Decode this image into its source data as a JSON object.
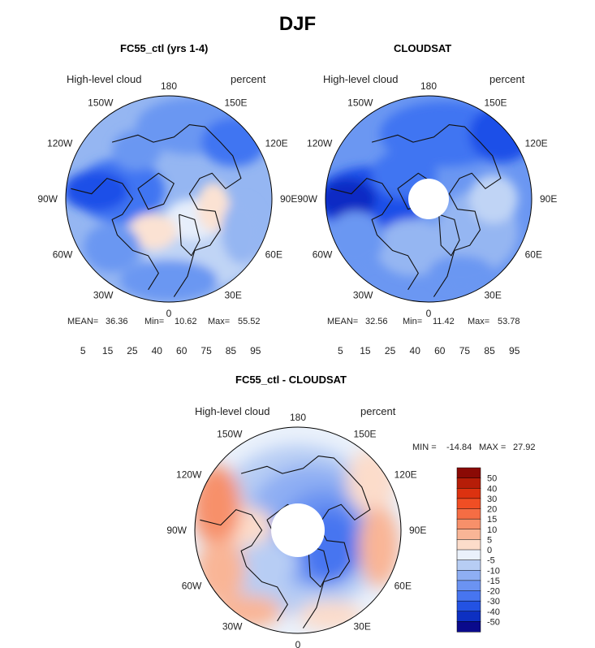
{
  "figure": {
    "title": "DJF"
  },
  "chart_data": [
    {
      "type": "heatmap",
      "projection": "north-polar-stereographic",
      "title": "FC55_ctl (yrs 1-4)",
      "subtitle_left": "High-level cloud",
      "subtitle_right": "percent",
      "lon_labels": [
        "180",
        "150E",
        "120E",
        "90E",
        "60E",
        "30E",
        "0",
        "30W",
        "60W",
        "90W",
        "120W",
        "150W"
      ],
      "stats": {
        "mean_label": "MEAN=",
        "mean": "36.36",
        "min_label": "Min=",
        "min": "10.62",
        "max_label": "Max=",
        "max": "55.52"
      },
      "colorbar": {
        "orientation": "horizontal",
        "tick_labels": [
          "5",
          "15",
          "25",
          "40",
          "60",
          "75",
          "85",
          "95"
        ],
        "colors": [
          "#0a0a8c",
          "#0c2bc4",
          "#1a4fe8",
          "#3f75f2",
          "#6b97f2",
          "#95b6f2",
          "#c0d4f5",
          "#e6eefb",
          "#fbe2d3",
          "#f8c2a6",
          "#f59d78",
          "#f3764e",
          "#ee4b27",
          "#d52f10",
          "#b01c08",
          "#7d0b05"
        ]
      }
    },
    {
      "type": "heatmap",
      "projection": "north-polar-stereographic",
      "title": "CLOUDSAT",
      "subtitle_left": "High-level cloud",
      "subtitle_right": "percent",
      "lon_labels": [
        "180",
        "150E",
        "120E",
        "90E",
        "60E",
        "30E",
        "0",
        "30W",
        "60W",
        "90W",
        "120W",
        "150W"
      ],
      "stats": {
        "mean_label": "MEAN=",
        "mean": "32.56",
        "min_label": "Min=",
        "min": "11.42",
        "max_label": "Max=",
        "max": "53.78"
      },
      "colorbar": {
        "orientation": "horizontal",
        "tick_labels": [
          "5",
          "15",
          "25",
          "40",
          "60",
          "75",
          "85",
          "95"
        ],
        "colors": [
          "#0a0a8c",
          "#0c2bc4",
          "#1a4fe8",
          "#3f75f2",
          "#6b97f2",
          "#95b6f2",
          "#c0d4f5",
          "#e6eefb",
          "#fbe2d3",
          "#f8c2a6",
          "#f59d78",
          "#f3764e",
          "#ee4b27",
          "#d52f10",
          "#b01c08",
          "#7d0b05"
        ]
      }
    },
    {
      "type": "heatmap",
      "projection": "north-polar-stereographic",
      "title": "FC55_ctl - CLOUDSAT",
      "subtitle_left": "High-level cloud",
      "subtitle_right": "percent",
      "lon_labels": [
        "180",
        "150E",
        "120E",
        "90E",
        "60E",
        "30E",
        "0",
        "30W",
        "60W",
        "90W",
        "120W",
        "150W"
      ],
      "stats": {
        "min_label": "MIN =",
        "min": "-14.84",
        "max_label": "MAX =",
        "max": "27.92"
      },
      "colorbar": {
        "orientation": "vertical",
        "tick_labels": [
          "50",
          "40",
          "30",
          "20",
          "15",
          "10",
          "5",
          "0",
          "-5",
          "-10",
          "-15",
          "-20",
          "-30",
          "-40",
          "-50"
        ],
        "colors": [
          "#8b0a05",
          "#b61d08",
          "#dc3210",
          "#f04e24",
          "#f56d44",
          "#f7906a",
          "#f9b596",
          "#fcdcca",
          "#eaf1fb",
          "#b7cdf4",
          "#8eaef3",
          "#6b93f2",
          "#4775f0",
          "#2352e3",
          "#0d30c2",
          "#0a0a8c"
        ]
      }
    }
  ]
}
